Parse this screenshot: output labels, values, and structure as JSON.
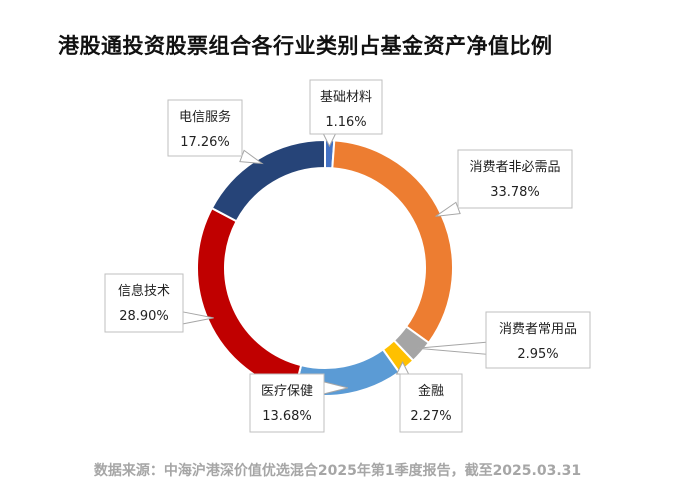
{
  "chart_data": {
    "type": "pie",
    "title": "港股通投资股票组合各行业类别占基金资产净值比例",
    "source": "数据来源：中海沪港深价值优选混合2025年第1季度报告，截至2025.03.31",
    "value_unit": "%",
    "donut": true,
    "slices": [
      {
        "label": "基础材料",
        "value": 1.16,
        "display": "1.16%",
        "color": "#4472c4"
      },
      {
        "label": "消费者非必需品",
        "value": 33.78,
        "display": "33.78%",
        "color": "#ed7d31"
      },
      {
        "label": "消费者常用品",
        "value": 2.95,
        "display": "2.95%",
        "color": "#a5a5a5"
      },
      {
        "label": "金融",
        "value": 2.27,
        "display": "2.27%",
        "color": "#ffc000"
      },
      {
        "label": "医疗保健",
        "value": 13.68,
        "display": "13.68%",
        "color": "#5b9bd5"
      },
      {
        "label": "信息技术",
        "value": 28.9,
        "display": "28.90%",
        "color": "#c00000"
      },
      {
        "label": "电信服务",
        "value": 17.26,
        "display": "17.26%",
        "color": "#264478"
      }
    ]
  }
}
